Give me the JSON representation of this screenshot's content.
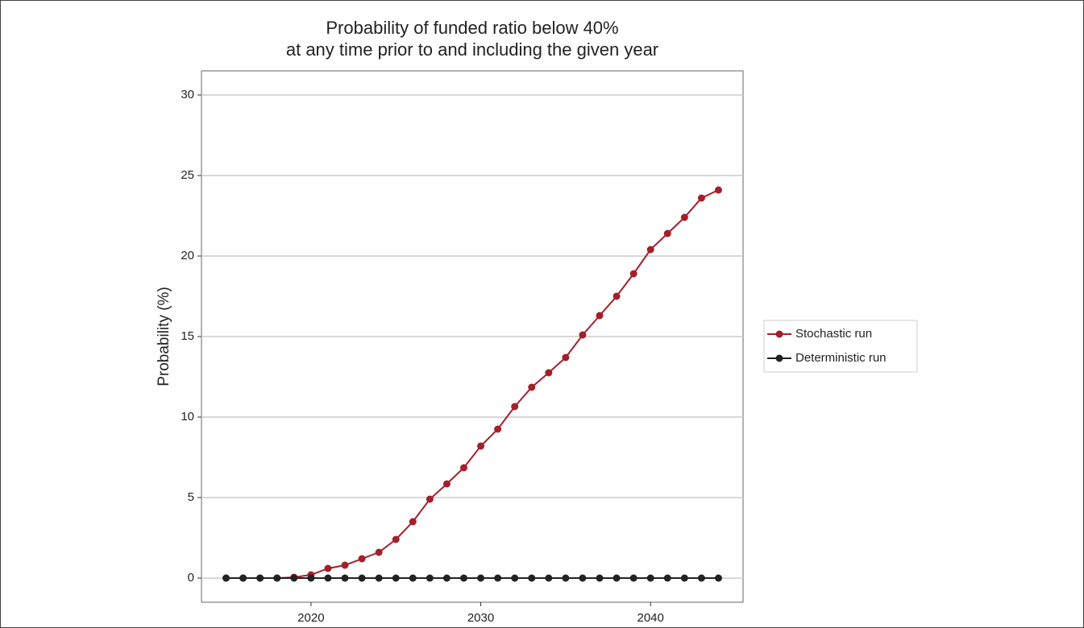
{
  "chart_data": {
    "type": "line",
    "title": [
      "Probability of funded ratio below 40%",
      "at any time prior to and including the given year"
    ],
    "y_label": "Probability (%)",
    "x": [
      2015,
      2016,
      2017,
      2018,
      2019,
      2020,
      2021,
      2022,
      2023,
      2024,
      2025,
      2026,
      2027,
      2028,
      2029,
      2030,
      2031,
      2032,
      2033,
      2034,
      2035,
      2036,
      2037,
      2038,
      2039,
      2040,
      2041,
      2042,
      2043,
      2044
    ],
    "series": [
      {
        "name": "Stochastic run",
        "color": "#a31f2a",
        "values": [
          0,
          0,
          0,
          0,
          0.05,
          0.2,
          0.6,
          0.8,
          1.2,
          1.6,
          2.4,
          3.5,
          4.9,
          5.85,
          6.85,
          8.2,
          9.25,
          10.65,
          11.85,
          12.75,
          13.7,
          15.1,
          16.3,
          17.5,
          18.9,
          20.4,
          21.4,
          22.4,
          23.6,
          24.1
        ]
      },
      {
        "name": "Deterministic run",
        "color": "#222222",
        "values": [
          0,
          0,
          0,
          0,
          0,
          0,
          0,
          0,
          0,
          0,
          0,
          0,
          0,
          0,
          0,
          0,
          0,
          0,
          0,
          0,
          0,
          0,
          0,
          0,
          0,
          0,
          0,
          0,
          0,
          0
        ]
      }
    ],
    "xlim": [
      2013.55,
      2045.45
    ],
    "xticks": [
      2020,
      2030,
      2040
    ],
    "ylim": [
      -1.5,
      31.5
    ],
    "yticks": [
      0,
      5,
      10,
      15,
      20,
      25,
      30
    ],
    "grid": true,
    "legend": "right"
  }
}
